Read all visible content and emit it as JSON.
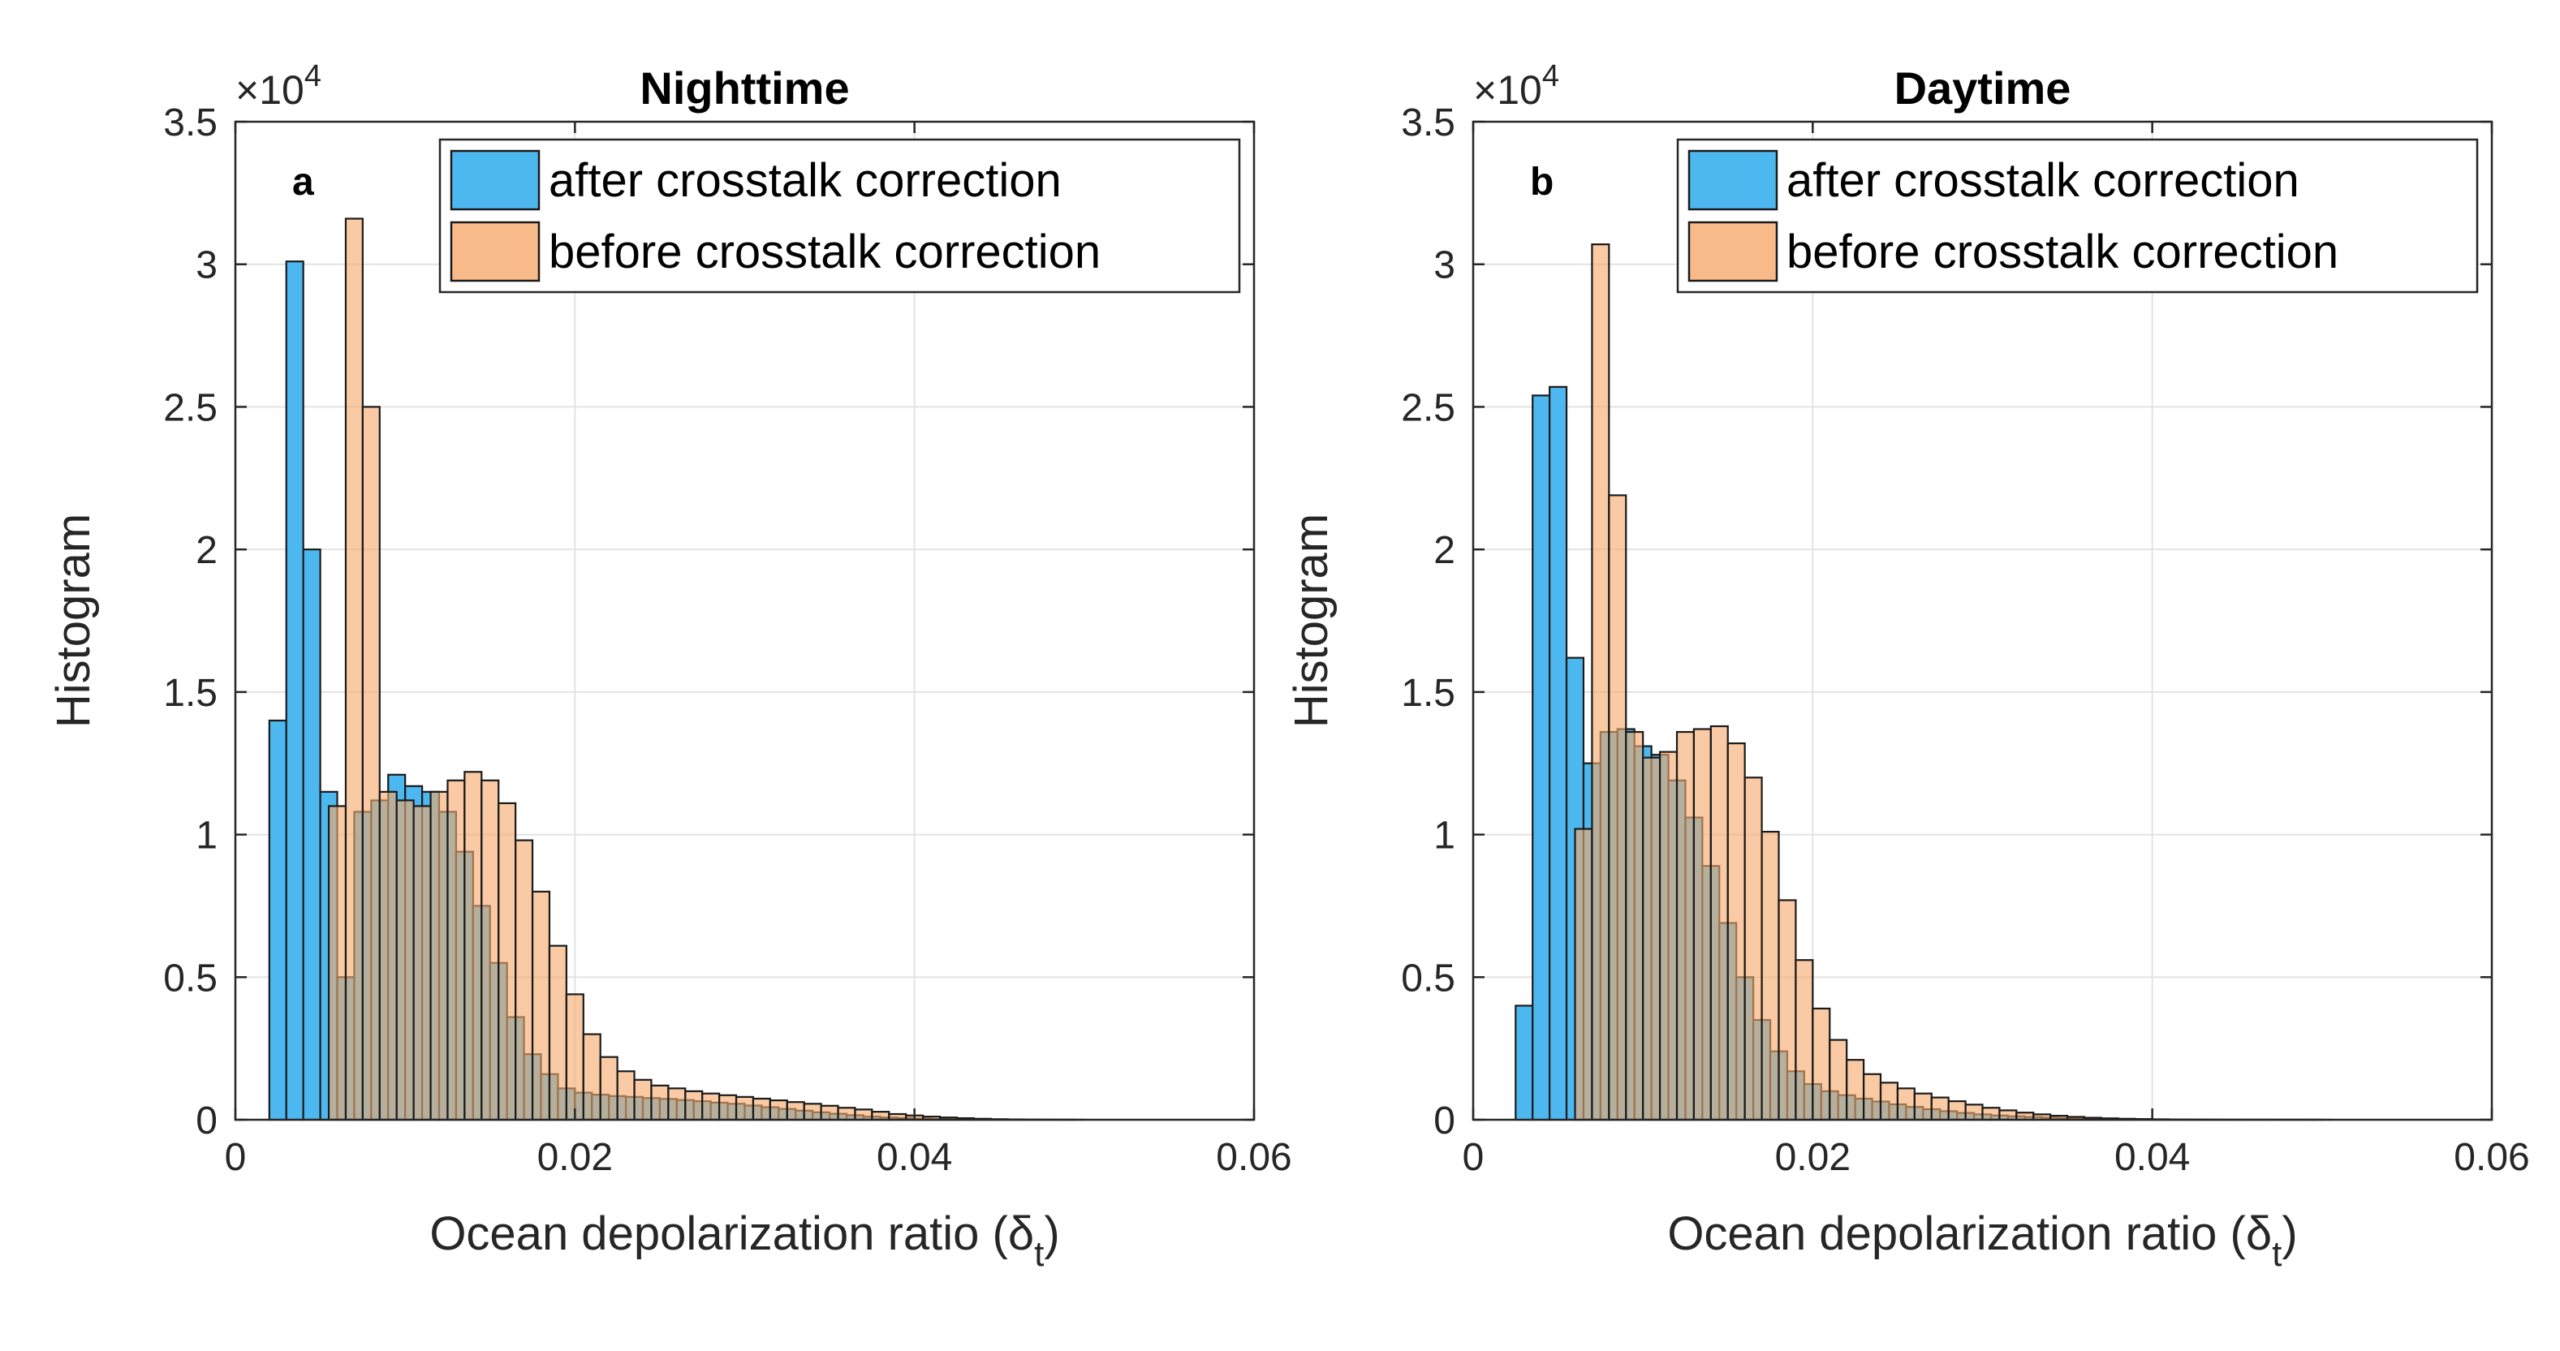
{
  "chart_data": [
    {
      "type": "histogram",
      "panel_label": "a",
      "title": "Nighttime",
      "xlabel": "Ocean depolarization ratio (δ",
      "xlabel_subscript": "t",
      "xlabel_close": ")",
      "ylabel": "Histogram",
      "y_exponent_base": "×10",
      "y_exponent_power": "4",
      "xlim": [
        0,
        0.06
      ],
      "ylim": [
        0,
        35000
      ],
      "xticks": [
        0,
        0.02,
        0.04,
        0.06
      ],
      "xtick_labels": [
        "0",
        "0.02",
        "0.04",
        "0.06"
      ],
      "yticks": [
        0,
        5000,
        10000,
        15000,
        20000,
        25000,
        30000,
        35000
      ],
      "ytick_labels": [
        "0",
        "0.5",
        "1",
        "1.5",
        "2",
        "2.5",
        "3",
        "3.5"
      ],
      "grid": true,
      "legend_position": "top-right",
      "series": [
        {
          "name": "after crosstalk correction",
          "color": "#4db8f0",
          "bin_start": 0.002,
          "bin_width": 0.001,
          "values": [
            14000,
            30100,
            20000,
            11500,
            5000,
            10800,
            11200,
            12100,
            11700,
            11500,
            10800,
            9400,
            7500,
            5500,
            3600,
            2300,
            1600,
            1100,
            950,
            880,
            830,
            800,
            760,
            730,
            690,
            650,
            600,
            560,
            500,
            440,
            380,
            320,
            260,
            210,
            160,
            110,
            80,
            60,
            40,
            25,
            15,
            10,
            5,
            3,
            2,
            1,
            1,
            1
          ]
        },
        {
          "name": "before crosstalk correction",
          "color": "#f6a96b",
          "bin_start": 0.0055,
          "bin_width": 0.001,
          "values": [
            11000,
            31600,
            25000,
            11500,
            11200,
            11000,
            11500,
            11900,
            12200,
            11900,
            11100,
            9800,
            8000,
            6100,
            4400,
            3000,
            2200,
            1700,
            1400,
            1200,
            1100,
            1000,
            920,
            860,
            800,
            740,
            680,
            620,
            560,
            490,
            420,
            360,
            280,
            200,
            150,
            110,
            80,
            55,
            35,
            20,
            12,
            6,
            3,
            2
          ]
        }
      ]
    },
    {
      "type": "histogram",
      "panel_label": "b",
      "title": "Daytime",
      "xlabel": "Ocean depolarization ratio (δ",
      "xlabel_subscript": "t",
      "xlabel_close": ")",
      "ylabel": "Histogram",
      "y_exponent_base": "×10",
      "y_exponent_power": "4",
      "xlim": [
        0,
        0.06
      ],
      "ylim": [
        0,
        35000
      ],
      "xticks": [
        0,
        0.02,
        0.04,
        0.06
      ],
      "xtick_labels": [
        "0",
        "0.02",
        "0.04",
        "0.06"
      ],
      "yticks": [
        0,
        5000,
        10000,
        15000,
        20000,
        25000,
        30000,
        35000
      ],
      "ytick_labels": [
        "0",
        "0.5",
        "1",
        "1.5",
        "2",
        "2.5",
        "3",
        "3.5"
      ],
      "grid": true,
      "legend_position": "top-right",
      "series": [
        {
          "name": "after crosstalk correction",
          "color": "#4db8f0",
          "bin_start": 0.0025,
          "bin_width": 0.001,
          "values": [
            4000,
            25400,
            25700,
            16200,
            12500,
            13600,
            13700,
            13100,
            12800,
            11900,
            10600,
            8900,
            6900,
            5000,
            3500,
            2400,
            1700,
            1250,
            1000,
            860,
            740,
            640,
            540,
            450,
            370,
            300,
            240,
            190,
            150,
            120,
            95,
            75,
            60,
            45,
            35,
            25,
            18,
            12,
            8,
            5,
            3,
            2,
            1,
            1,
            1,
            1,
            1,
            1
          ]
        },
        {
          "name": "before crosstalk correction",
          "color": "#f6a96b",
          "bin_start": 0.006,
          "bin_width": 0.001,
          "values": [
            10200,
            30700,
            21900,
            13600,
            12700,
            12900,
            13600,
            13700,
            13800,
            13200,
            12000,
            10100,
            7700,
            5600,
            3900,
            2800,
            2100,
            1600,
            1300,
            1100,
            920,
            780,
            650,
            530,
            420,
            330,
            250,
            190,
            140,
            100,
            70,
            50,
            35,
            25,
            16,
            10,
            6,
            4,
            2,
            1,
            1,
            1,
            1,
            1
          ]
        }
      ]
    }
  ]
}
